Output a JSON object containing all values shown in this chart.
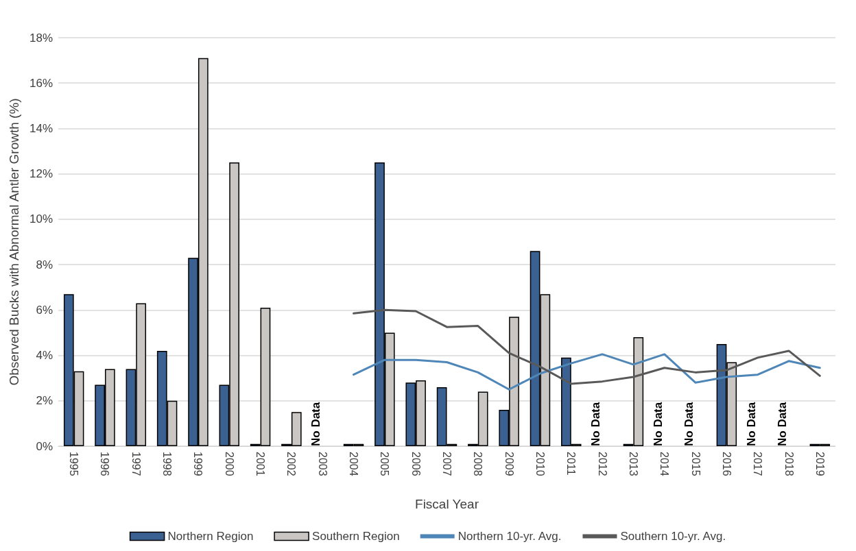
{
  "chart_data": {
    "type": "bar",
    "xlabel": "Fiscal Year",
    "ylabel": "Observed Bucks with Abnormal Antler Growth (%)",
    "categories": [
      "1995",
      "1996",
      "1997",
      "1998",
      "1999",
      "2000",
      "2001",
      "2002",
      "2003",
      "2004",
      "2005",
      "2006",
      "2007",
      "2008",
      "2009",
      "2010",
      "2011",
      "2012",
      "2013",
      "2014",
      "2015",
      "2016",
      "2017",
      "2018",
      "2019"
    ],
    "series": [
      {
        "name": "Northern Region",
        "color": "#3a6191",
        "values": [
          6.7,
          2.7,
          3.4,
          4.2,
          8.3,
          2.7,
          0.1,
          0.1,
          null,
          0.1,
          12.5,
          2.8,
          2.6,
          0.1,
          1.6,
          8.6,
          3.9,
          null,
          0.1,
          null,
          null,
          4.5,
          null,
          null,
          0.1
        ]
      },
      {
        "name": "Southern Region",
        "color": "#c9c6c3",
        "values": [
          3.3,
          3.4,
          6.3,
          2.0,
          17.1,
          12.5,
          6.1,
          1.5,
          null,
          0.1,
          5.0,
          2.9,
          0.1,
          2.4,
          5.7,
          6.7,
          0.1,
          null,
          4.8,
          null,
          null,
          3.7,
          null,
          null,
          0.1
        ]
      },
      {
        "name": "Northern 10-yr. Avg.",
        "type": "line",
        "color": "#4f86b8",
        "values": [
          null,
          null,
          null,
          null,
          null,
          null,
          null,
          null,
          null,
          3.15,
          3.8,
          3.8,
          3.7,
          3.25,
          2.5,
          3.2,
          3.65,
          4.05,
          3.6,
          4.05,
          2.8,
          3.05,
          3.15,
          3.75,
          3.45
        ]
      },
      {
        "name": "Southern 10-yr. Avg.",
        "type": "line",
        "color": "#595959",
        "values": [
          null,
          null,
          null,
          null,
          null,
          null,
          null,
          null,
          null,
          5.85,
          6.0,
          5.95,
          5.25,
          5.3,
          4.1,
          3.5,
          2.75,
          2.85,
          3.05,
          3.45,
          3.25,
          3.35,
          3.9,
          4.2,
          3.1
        ]
      }
    ],
    "ylim": [
      0,
      18
    ],
    "yticks": [
      {
        "value": 0,
        "label": "0%"
      },
      {
        "value": 2,
        "label": "2%"
      },
      {
        "value": 4,
        "label": "4%"
      },
      {
        "value": 6,
        "label": "6%"
      },
      {
        "value": 8,
        "label": "8%"
      },
      {
        "value": 10,
        "label": "10%"
      },
      {
        "value": 12,
        "label": "12%"
      },
      {
        "value": 14,
        "label": "14%"
      },
      {
        "value": 16,
        "label": "16%"
      },
      {
        "value": 18,
        "label": "18%"
      }
    ],
    "annotations": [
      "No Data",
      "No Data",
      "No Data",
      "No Data",
      "No Data",
      "No Data"
    ],
    "grid": "y",
    "legend": "bottom",
    "marker": "none",
    "line_style": "solid"
  }
}
